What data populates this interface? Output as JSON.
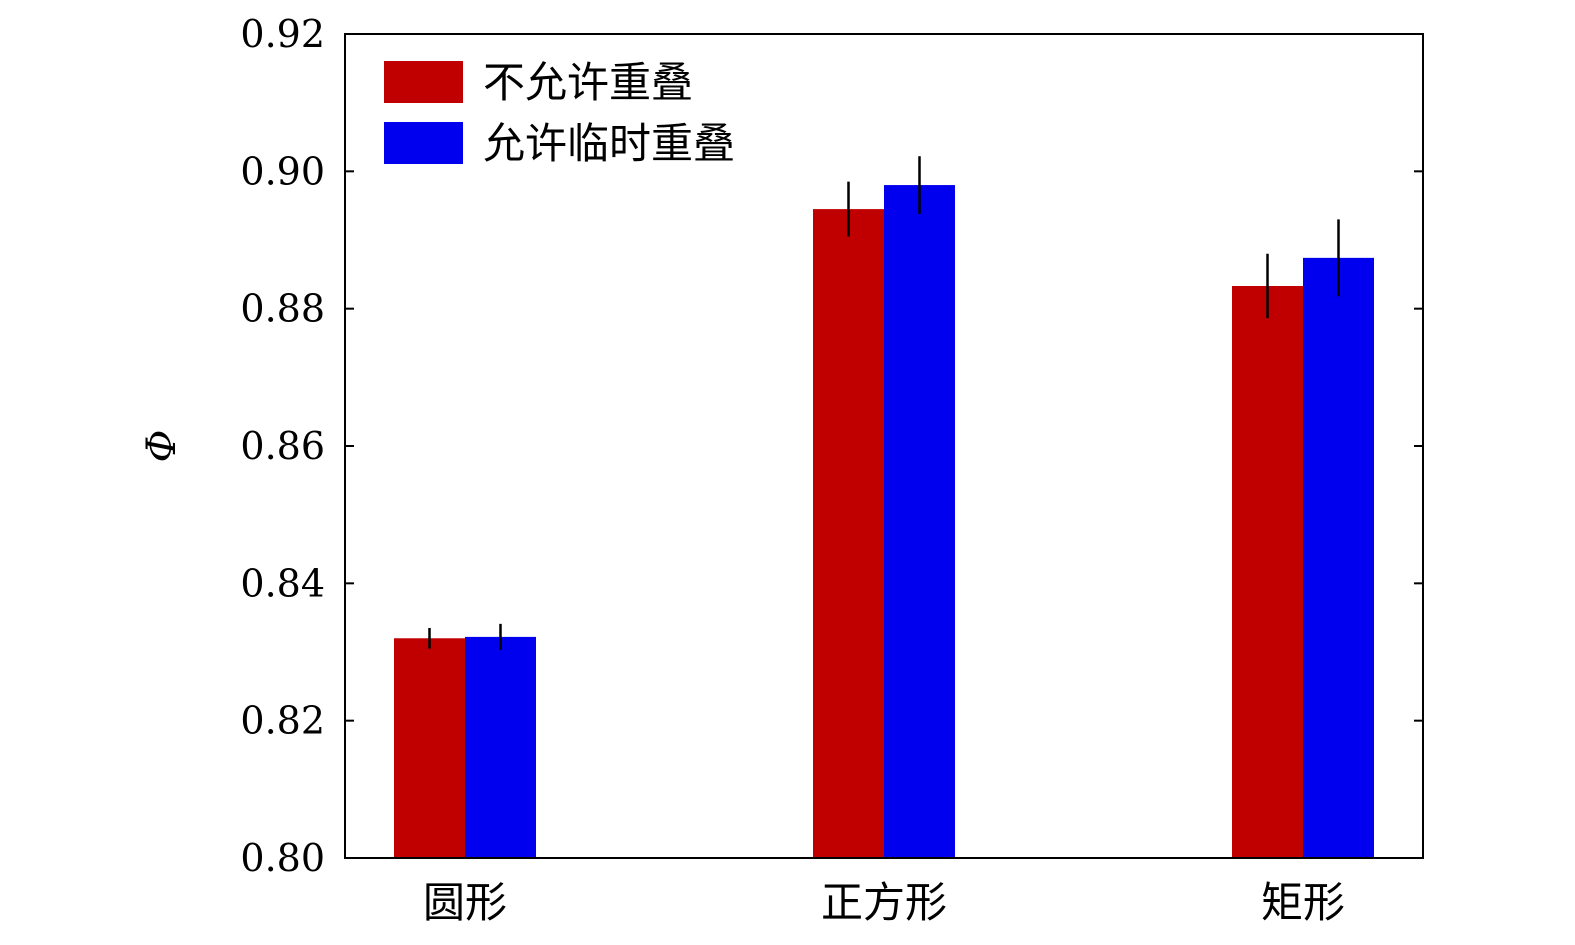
{
  "chart_data": {
    "type": "bar",
    "ylabel": "Φ",
    "xlabel": "",
    "ylim": [
      0.8,
      0.92
    ],
    "yticks": [
      "0.80",
      "0.82",
      "0.84",
      "0.86",
      "0.88",
      "0.90",
      "0.92"
    ],
    "ytick_values": [
      0.8,
      0.82,
      0.84,
      0.86,
      0.88,
      0.9,
      0.92
    ],
    "categories": [
      "圆形",
      "正方形",
      "矩形"
    ],
    "series": [
      {
        "name": "不允许重叠",
        "color": "#c00000",
        "values": [
          0.832,
          0.8945,
          0.8833
        ],
        "errors": [
          0.0015,
          0.004,
          0.0047
        ]
      },
      {
        "name": "允许临时重叠",
        "color": "#0000ee",
        "values": [
          0.8322,
          0.898,
          0.8874
        ],
        "errors": [
          0.0019,
          0.0042,
          0.0056
        ]
      }
    ],
    "legend_position": "top-left",
    "grid": false
  }
}
